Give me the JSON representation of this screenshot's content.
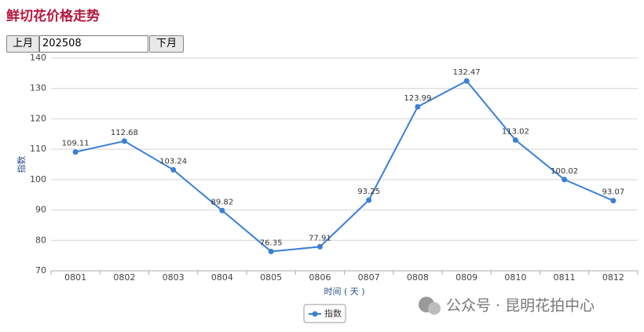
{
  "chart_data": {
    "type": "line",
    "title": "鲜切花价格走势",
    "categories": [
      "0801",
      "0802",
      "0803",
      "0804",
      "0805",
      "0806",
      "0807",
      "0808",
      "0809",
      "0810",
      "0811",
      "0812"
    ],
    "series": [
      {
        "name": "指数",
        "color": "#3a7fd5",
        "values": [
          109.11,
          112.68,
          103.24,
          89.82,
          76.35,
          77.91,
          93.25,
          123.99,
          132.47,
          113.02,
          100.02,
          93.07
        ]
      }
    ],
    "ylim": [
      70,
      140
    ],
    "yticks": [
      70,
      80,
      90,
      100,
      110,
      120,
      130,
      140
    ],
    "grid": true,
    "ylabel": "指数",
    "xlabel": "时间 ( 天 )",
    "legend": "bottom"
  },
  "controls": {
    "prev": "上月",
    "month": "202508",
    "next": "下月"
  },
  "watermark": "公众号 · 昆明花拍中心"
}
